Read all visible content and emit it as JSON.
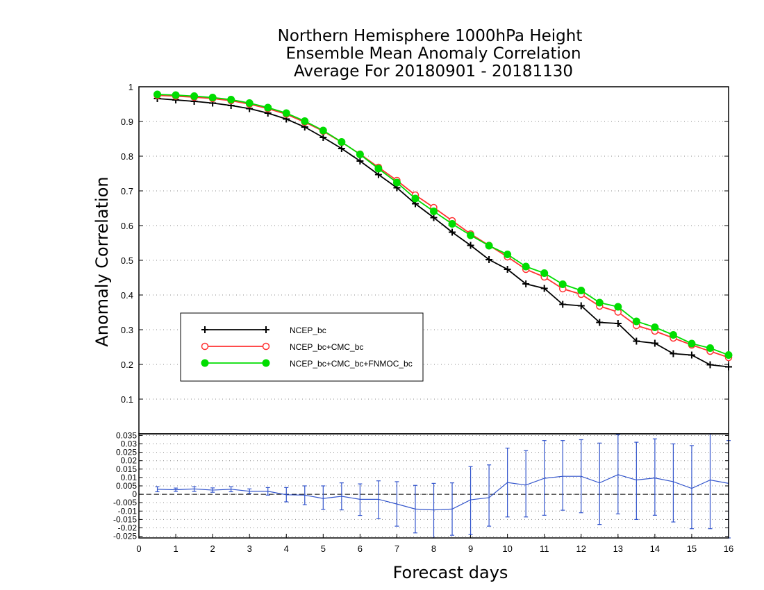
{
  "chart_data": [
    {
      "type": "line",
      "title": [
        "Northern Hemisphere 1000hPa Height",
        "Ensemble Mean Anomaly Correlation",
        "Average For 20180901 - 20181130"
      ],
      "xlabel": "",
      "ylabel": "Anomaly Correlation",
      "xlim": [
        0,
        16
      ],
      "ylim": [
        0,
        1
      ],
      "yticks": [
        "0.1",
        "0.2",
        "0.3",
        "0.4",
        "0.5",
        "0.6",
        "0.7",
        "0.8",
        "0.9",
        "1"
      ],
      "grid": true,
      "legend_position": "lower-left",
      "x": [
        0.5,
        1,
        1.5,
        2,
        2.5,
        3,
        3.5,
        4,
        4.5,
        5,
        5.5,
        6,
        6.5,
        7,
        7.5,
        8,
        8.5,
        9,
        9.5,
        10,
        10.5,
        11,
        11.5,
        12,
        12.5,
        13,
        13.5,
        14,
        14.5,
        15,
        15.5,
        16
      ],
      "series": [
        {
          "name": "NCEP_bc",
          "color": "#000000",
          "marker": "plus",
          "values": [
            0.966,
            0.962,
            0.958,
            0.953,
            0.946,
            0.937,
            0.924,
            0.907,
            0.884,
            0.854,
            0.822,
            0.786,
            0.747,
            0.709,
            0.663,
            0.623,
            0.581,
            0.543,
            0.502,
            0.474,
            0.432,
            0.419,
            0.373,
            0.369,
            0.321,
            0.318,
            0.267,
            0.261,
            0.231,
            0.227,
            0.199,
            0.193
          ]
        },
        {
          "name": "NCEP_bc+CMC_bc",
          "color": "#ff3333",
          "marker": "open-circle",
          "values": [
            0.975,
            0.973,
            0.97,
            0.966,
            0.96,
            0.95,
            0.937,
            0.921,
            0.898,
            0.872,
            0.84,
            0.806,
            0.768,
            0.73,
            0.688,
            0.652,
            0.614,
            0.576,
            0.543,
            0.51,
            0.474,
            0.452,
            0.418,
            0.402,
            0.368,
            0.351,
            0.312,
            0.296,
            0.276,
            0.256,
            0.238,
            0.22
          ]
        },
        {
          "name": "NCEP_bc+CMC_bc+FNMOC_bc",
          "color": "#00dd00",
          "marker": "filled-circle",
          "values": [
            0.978,
            0.976,
            0.973,
            0.969,
            0.963,
            0.953,
            0.94,
            0.924,
            0.901,
            0.874,
            0.841,
            0.805,
            0.764,
            0.724,
            0.678,
            0.641,
            0.605,
            0.572,
            0.542,
            0.517,
            0.482,
            0.463,
            0.431,
            0.413,
            0.378,
            0.366,
            0.324,
            0.307,
            0.285,
            0.26,
            0.247,
            0.227
          ]
        }
      ]
    },
    {
      "type": "line",
      "xlabel": "Forecast days",
      "ylabel": "",
      "xlim": [
        0,
        16
      ],
      "ylim": [
        -0.026,
        0.036
      ],
      "xticks": [
        "0",
        "1",
        "2",
        "3",
        "4",
        "5",
        "6",
        "7",
        "8",
        "9",
        "10",
        "11",
        "12",
        "13",
        "14",
        "15",
        "16"
      ],
      "yticks": [
        "-0.025",
        "-0.02",
        "-0.015",
        "-0.01",
        "-0.005",
        "0",
        "0.005",
        "0.01",
        "0.015",
        "0.02",
        "0.025",
        "0.03",
        "0.035"
      ],
      "grid": true,
      "reference_line": 0,
      "x": [
        0.5,
        1,
        1.5,
        2,
        2.5,
        3,
        3.5,
        4,
        4.5,
        5,
        5.5,
        6,
        6.5,
        7,
        7.5,
        8,
        8.5,
        9,
        9.5,
        10,
        10.5,
        11,
        11.5,
        12,
        12.5,
        13,
        13.5,
        14,
        14.5,
        15,
        15.5,
        16
      ],
      "series": [
        {
          "name": "",
          "color": "#3355cc",
          "values": [
            0.003,
            0.0027,
            0.0032,
            0.0025,
            0.003,
            0.0018,
            0.0018,
            -0.0003,
            -0.0005,
            -0.0025,
            -0.0012,
            -0.003,
            -0.003,
            -0.0058,
            -0.0088,
            -0.0093,
            -0.0088,
            -0.0033,
            -0.002,
            0.007,
            0.0055,
            0.0095,
            0.0107,
            0.0107,
            0.0068,
            0.0117,
            0.0085,
            0.0097,
            0.0075,
            0.0035,
            0.0085,
            0.0065
          ],
          "lower": [
            0.0015,
            0.0017,
            0.0017,
            0.0012,
            0.0015,
            0.0005,
            -0.0005,
            -0.0045,
            -0.0062,
            -0.009,
            -0.0093,
            -0.0126,
            -0.0145,
            -0.019,
            -0.023,
            -0.0262,
            -0.0244,
            -0.024,
            -0.019,
            -0.0135,
            -0.0135,
            -0.0125,
            -0.0095,
            -0.011,
            -0.018,
            -0.0117,
            -0.015,
            -0.0125,
            -0.0165,
            -0.0205,
            -0.0205,
            -0.026
          ],
          "upper": [
            0.0045,
            0.0037,
            0.0045,
            0.0038,
            0.0045,
            0.0032,
            0.004,
            0.004,
            0.005,
            0.005,
            0.0068,
            0.0062,
            0.008,
            0.0075,
            0.0053,
            0.0065,
            0.0068,
            0.0165,
            0.0175,
            0.0275,
            0.026,
            0.032,
            0.032,
            0.0325,
            0.0305,
            0.0355,
            0.031,
            0.033,
            0.03,
            0.029,
            0.0365,
            0.032
          ]
        }
      ]
    }
  ]
}
